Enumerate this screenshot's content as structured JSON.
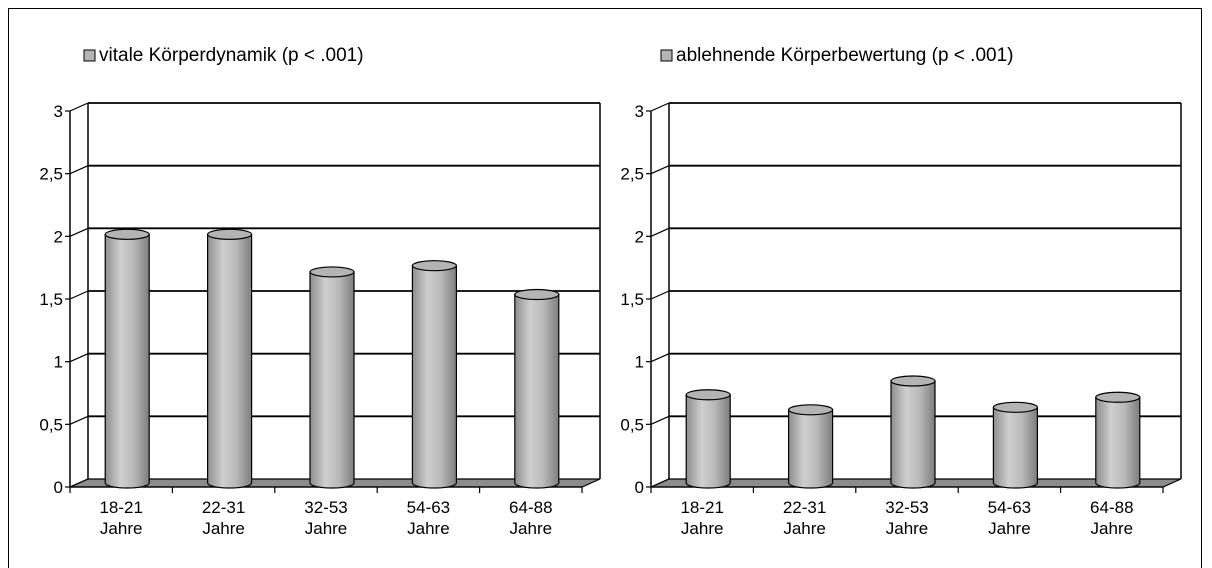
{
  "colors": {
    "bar": "#b4b4b4",
    "floor": "#8c8c8c",
    "background": "#ffffff",
    "lines": "#000000"
  },
  "chart_data": [
    {
      "type": "bar",
      "style": "3d-cylinder",
      "legend": "vitale Körperdynamik (p < .001)",
      "legend_position": "top-left",
      "categories": [
        [
          "18-21",
          "Jahre"
        ],
        [
          "22-31",
          "Jahre"
        ],
        [
          "32-53",
          "Jahre"
        ],
        [
          "54-63",
          "Jahre"
        ],
        [
          "64-88",
          "Jahre"
        ]
      ],
      "values": [
        2.0,
        2.0,
        1.7,
        1.75,
        1.52
      ],
      "ylim": [
        0,
        3
      ],
      "yticks": [
        0,
        0.5,
        1,
        1.5,
        2,
        2.5,
        3
      ],
      "ytick_labels": [
        "0",
        "0,5",
        "1",
        "1,5",
        "2",
        "2,5",
        "3"
      ],
      "grid": true
    },
    {
      "type": "bar",
      "style": "3d-cylinder",
      "legend": "ablehnende Körperbewertung (p < .001)",
      "legend_position": "top-left",
      "categories": [
        [
          "18-21",
          "Jahre"
        ],
        [
          "22-31",
          "Jahre"
        ],
        [
          "32-53",
          "Jahre"
        ],
        [
          "54-63",
          "Jahre"
        ],
        [
          "64-88",
          "Jahre"
        ]
      ],
      "values": [
        0.72,
        0.6,
        0.83,
        0.62,
        0.7
      ],
      "ylim": [
        0,
        3
      ],
      "yticks": [
        0,
        0.5,
        1,
        1.5,
        2,
        2.5,
        3
      ],
      "ytick_labels": [
        "0",
        "0,5",
        "1",
        "1,5",
        "2",
        "2,5",
        "3"
      ],
      "grid": true
    }
  ]
}
